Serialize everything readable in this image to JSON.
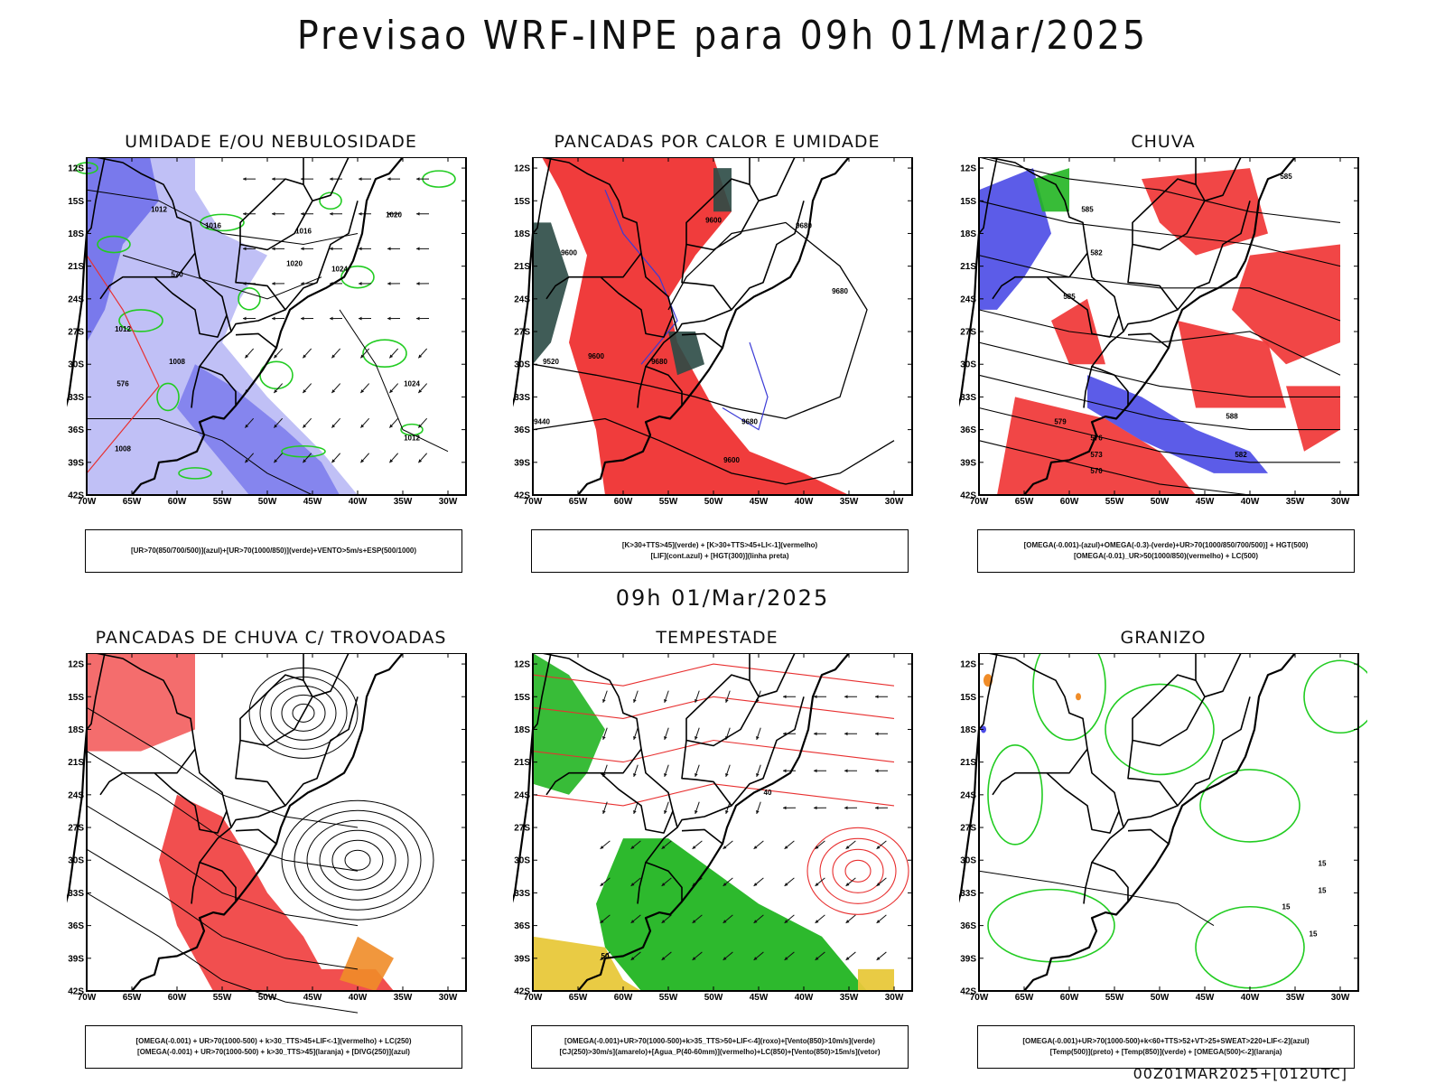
{
  "header": {
    "title": "Previsao WRF-INPE  para 09h 01/Mar/2025",
    "mid_time": "09h 01/Mar/2025",
    "run_stamp": "00Z01MAR2025+[012UTC]"
  },
  "axes": {
    "lat_labels": [
      "12S",
      "15S",
      "18S",
      "21S",
      "24S",
      "27S",
      "30S",
      "33S",
      "36S",
      "39S",
      "42S"
    ],
    "lon_labels": [
      "70W",
      "65W",
      "60W",
      "55W",
      "50W",
      "45W",
      "40W",
      "35W",
      "30W"
    ]
  },
  "colors": {
    "blue_fill": "#b9b9f5",
    "deep_blue": "#4a4ae6",
    "green_line": "#22cc22",
    "green_fill": "#22b522",
    "red_fill": "#f03c3c",
    "dark_teal": "#2b4a45",
    "orange": "#f08c28",
    "yellow": "#e8c83a"
  },
  "panels": [
    {
      "id": "umidade",
      "title": "UMIDADE E/OU NEBULOSIDADE",
      "legend": [
        "[UR>70(850/700/500)](azul)+[UR>70(1000/850)](verde)+VENTO>5m/s+ESP(500/1000)"
      ],
      "labels": [
        "1012",
        "1016",
        "1016",
        "1020",
        "1020",
        "1024",
        "1024",
        "1012",
        "1008",
        "1012",
        "1008",
        "576",
        "570"
      ]
    },
    {
      "id": "pancadas-calor",
      "title": "PANCADAS POR CALOR E UMIDADE",
      "legend": [
        "[K>30+TTS>45](verde) + [K>30+TTS>45+LI<-1](vermelho)",
        "[LIF](cont.azul) + [HGT(300)](linha preta)"
      ],
      "labels": [
        "9600",
        "9600",
        "9680",
        "9680",
        "9600",
        "9680",
        "9520",
        "9440",
        "9680",
        "9600"
      ]
    },
    {
      "id": "chuva",
      "title": "CHUVA",
      "legend": [
        "[OMEGA(-0.001)-(azul)+OMEGA(-0.3)-(verde)+UR>70(1000/850/700/500)] + HGT(500)",
        "[OMEGA(-0.01)_UR>50(1000/850)(vermelho) + LC(500)"
      ],
      "labels": [
        "585",
        "585",
        "582",
        "588",
        "579",
        "576",
        "573",
        "570",
        "585",
        "582"
      ]
    },
    {
      "id": "trovoadas",
      "title": "PANCADAS DE CHUVA C/ TROVOADAS",
      "legend": [
        "[OMEGA(-0.001) + UR>70(1000-500) + k>30_TTS>45+LIF<-1](vermelho) + LC(250)",
        "[OMEGA(-0.001) + UR>70(1000-500) + k>30_TTS>45](laranja) + [DIVG(250)](azul)"
      ],
      "labels": []
    },
    {
      "id": "tempestade",
      "title": "TEMPESTADE",
      "legend": [
        "[OMEGA(-0.001)+UR>70(1000-500)+k>35_TTS>50+LIF<-4](roxo)+[Vento(850)>10m/s](verde)",
        "[CJ(250)>30m/s](amarelo)+[Agua_P(40-60mm)](vermelho)+LC(850)+[Vento(850)>15m/s](vetor)"
      ],
      "labels": [
        "40",
        "50"
      ]
    },
    {
      "id": "granizo",
      "title": "GRANIZO",
      "legend": [
        "[OMEGA(-0.001)+UR>70(1000-500)+k<60+TTS>52+VT>25+SWEAT>220+LIF<-2](azul)",
        "[Temp(500)](preto) + [Temp(850)](verde) + [OMEGA(500)<-2](laranja)"
      ],
      "labels": [
        "15",
        "15",
        "15",
        "15"
      ]
    }
  ]
}
